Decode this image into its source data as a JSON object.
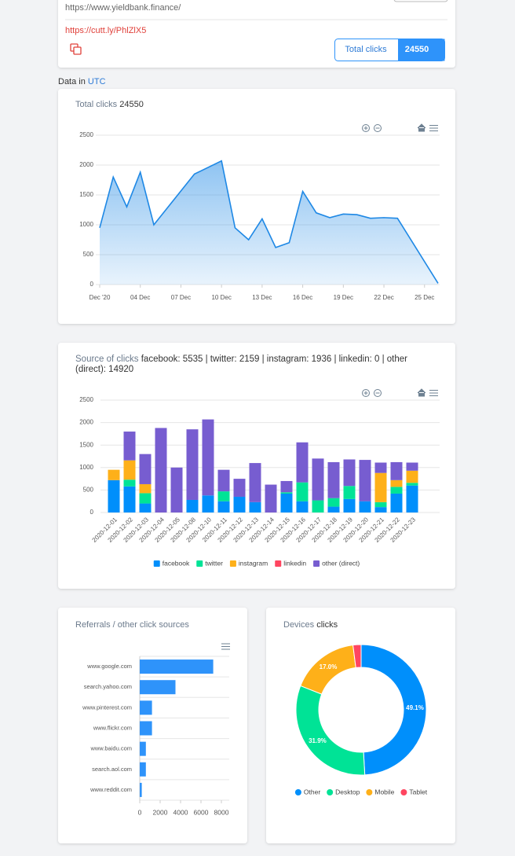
{
  "header": {
    "url": "https://www.yieldbank.finance/",
    "short_url": "https://cutt.ly/PhlZlX5",
    "total_clicks_label": "Total clicks",
    "total_clicks_value": 24550
  },
  "timezone": {
    "label": "Data in",
    "value": "UTC"
  },
  "chart_data": [
    {
      "type": "line",
      "title": "Total clicks",
      "title_value": 24550,
      "color": "#1e88e5",
      "x": [
        "2020-12-01",
        "2020-12-02",
        "2020-12-03",
        "2020-12-04",
        "2020-12-05",
        "2020-12-08",
        "2020-12-10",
        "2020-12-11",
        "2020-12-12",
        "2020-12-13",
        "2020-12-14",
        "2020-12-15",
        "2020-12-16",
        "2020-12-17",
        "2020-12-18",
        "2020-12-19",
        "2020-12-20",
        "2020-12-21",
        "2020-12-22",
        "2020-12-23",
        "2020-12-26"
      ],
      "values": [
        950,
        1800,
        1300,
        1880,
        1000,
        1850,
        2070,
        950,
        750,
        1100,
        620,
        700,
        1560,
        1200,
        1120,
        1180,
        1170,
        1110,
        1120,
        1110,
        20
      ],
      "xlim": [
        "2020-12-01",
        "2020-12-26"
      ],
      "xticks": [
        {
          "value": "2020-12-01",
          "label": "Dec '20"
        },
        {
          "value": "2020-12-04",
          "label": "04 Dec"
        },
        {
          "value": "2020-12-07",
          "label": "07 Dec"
        },
        {
          "value": "2020-12-10",
          "label": "10 Dec"
        },
        {
          "value": "2020-12-13",
          "label": "13 Dec"
        },
        {
          "value": "2020-12-16",
          "label": "16 Dec"
        },
        {
          "value": "2020-12-19",
          "label": "19 Dec"
        },
        {
          "value": "2020-12-22",
          "label": "22 Dec"
        },
        {
          "value": "2020-12-25",
          "label": "25 Dec"
        }
      ],
      "ylim": [
        0,
        2500
      ],
      "yticks": [
        0,
        500,
        1000,
        1500,
        2000,
        2500
      ],
      "grid": true
    },
    {
      "type": "stacked_bar",
      "title": "Source of clicks",
      "subtitle": "facebook: 5535 | twitter: 2159 | instagram: 1936 | linkedin: 0 | other (direct): 14920",
      "categories": [
        "2020-12-01",
        "2020-12-02",
        "2020-12-03",
        "2020-12-04",
        "2020-12-05",
        "2020-12-08",
        "2020-12-10",
        "2020-12-11",
        "2020-12-12",
        "2020-12-13",
        "2020-12-14",
        "2020-12-15",
        "2020-12-16",
        "2020-12-17",
        "2020-12-18",
        "2020-12-19",
        "2020-12-20",
        "2020-12-21",
        "2020-12-22",
        "2020-12-23"
      ],
      "series": [
        {
          "name": "facebook",
          "color": "#008ffb",
          "values": [
            720,
            580,
            200,
            0,
            0,
            280,
            380,
            250,
            350,
            230,
            0,
            420,
            250,
            0,
            130,
            300,
            250,
            120,
            420,
            600
          ]
        },
        {
          "name": "twitter",
          "color": "#00e396",
          "values": [
            0,
            150,
            230,
            0,
            0,
            0,
            0,
            220,
            0,
            0,
            0,
            30,
            420,
            270,
            190,
            290,
            0,
            110,
            150,
            60
          ]
        },
        {
          "name": "instagram",
          "color": "#feb019",
          "values": [
            230,
            430,
            200,
            0,
            0,
            0,
            0,
            0,
            0,
            0,
            0,
            0,
            0,
            0,
            0,
            0,
            0,
            650,
            150,
            270
          ]
        },
        {
          "name": "linkedin",
          "color": "#ff4560",
          "values": [
            0,
            0,
            0,
            0,
            0,
            0,
            0,
            0,
            0,
            0,
            0,
            0,
            0,
            0,
            0,
            0,
            0,
            0,
            0,
            0
          ]
        },
        {
          "name": "other (direct)",
          "color": "#775dd0",
          "values": [
            0,
            640,
            670,
            1880,
            1000,
            1570,
            1690,
            480,
            400,
            870,
            620,
            250,
            890,
            930,
            800,
            590,
            920,
            230,
            400,
            180
          ]
        }
      ],
      "ylim": [
        0,
        2500
      ],
      "yticks": [
        0,
        500,
        1000,
        1500,
        2000,
        2500
      ],
      "grid": true,
      "legend": "bottom"
    },
    {
      "type": "hbar",
      "title": "Referrals / other click sources",
      "color": "#2e93fa",
      "categories": [
        "www.google.com",
        "search.yahoo.com",
        "www.pinterest.com",
        "www.flickr.com",
        "www.baidu.com",
        "search.aol.com",
        "www.reddit.com"
      ],
      "values": [
        7200,
        3500,
        1200,
        1200,
        600,
        600,
        200
      ],
      "xlim": [
        0,
        8000
      ],
      "xticks": [
        0,
        2000,
        4000,
        6000,
        8000
      ]
    },
    {
      "type": "donut",
      "title": "Devices",
      "title_value": "clicks",
      "categories": [
        "Other",
        "Desktop",
        "Mobile",
        "Tablet"
      ],
      "values": [
        49.1,
        31.9,
        17.0,
        2.0
      ],
      "value_labels": [
        "49.1%",
        "31.9%",
        "17.0%",
        null
      ],
      "colors": [
        "#008ffb",
        "#00e396",
        "#feb019",
        "#ff4560"
      ],
      "legend": "bottom"
    }
  ]
}
